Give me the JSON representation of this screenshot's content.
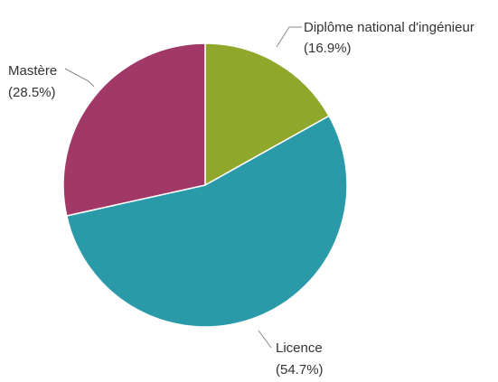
{
  "chart_data": {
    "type": "pie",
    "title": "",
    "slices": [
      {
        "name": "Diplôme national d'ingénieur",
        "value": 16.9,
        "percent_label": "(16.9%)",
        "color": "#8fa82c"
      },
      {
        "name": "Licence",
        "value": 54.7,
        "percent_label": "(54.7%)",
        "color": "#2a9aa9"
      },
      {
        "name": "Mastère",
        "value": 28.5,
        "percent_label": "(28.5%)",
        "color": "#a23868"
      }
    ],
    "start_angle_deg": 0,
    "direction": "clockwise",
    "slice_border_color": "#ffffff",
    "connector_color": "#888888"
  }
}
